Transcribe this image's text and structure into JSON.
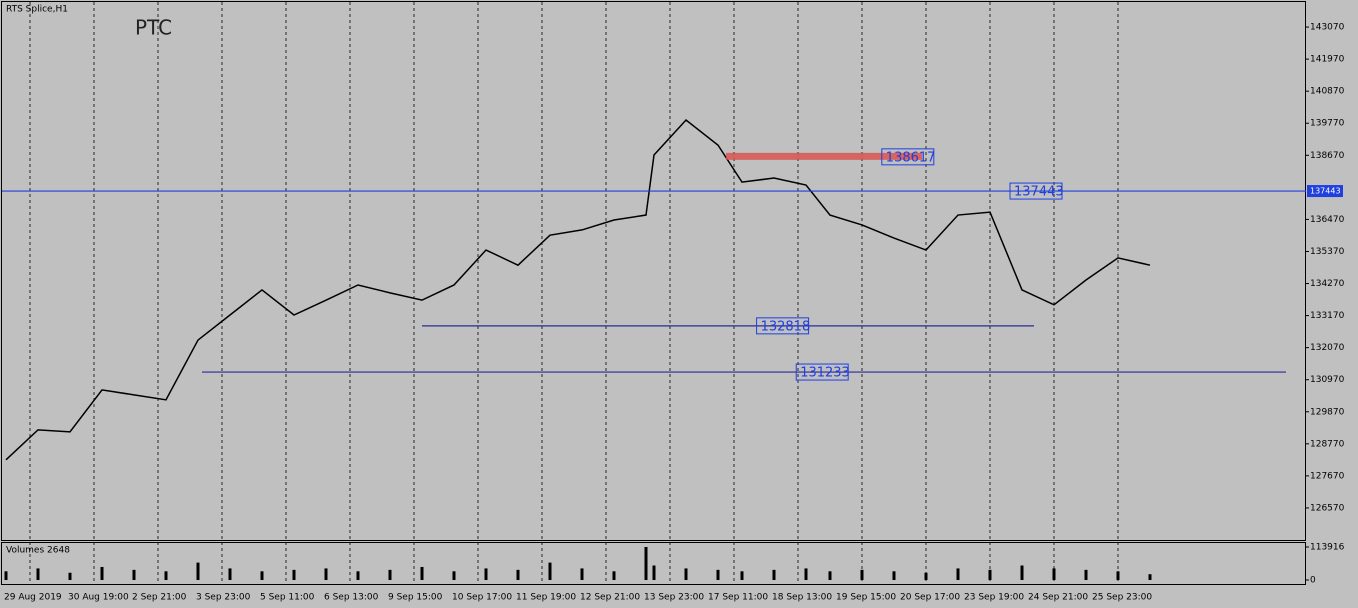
{
  "window_title": "RTS Splice,H1",
  "watermark": "PTC",
  "chart_data": [
    {
      "type": "line",
      "color": "#000000",
      "x": [
        1,
        9,
        17,
        25,
        33,
        41,
        49,
        57,
        65,
        73,
        81,
        89,
        97,
        105,
        113,
        121,
        129,
        137,
        145,
        153,
        161,
        163,
        171,
        179,
        185,
        193,
        201,
        207,
        215,
        223,
        231,
        239,
        247,
        255,
        263,
        271,
        279,
        287
      ],
      "values": [
        128220,
        129250,
        129180,
        130620,
        130450,
        130280,
        132330,
        133190,
        134050,
        133190,
        133700,
        134220,
        133950,
        133700,
        134220,
        135420,
        134900,
        135930,
        136110,
        136450,
        136620,
        138680,
        139880,
        139020,
        137750,
        137890,
        137650,
        136620,
        136280,
        135830,
        135420,
        136620,
        136720,
        134050,
        133540,
        134390,
        135150,
        134900
      ],
      "xlim": [
        0,
        326
      ],
      "xticks": [
        {
          "value": 0,
          "label": "29 Aug 2019"
        },
        {
          "value": 16,
          "label": "30 Aug 19:00"
        },
        {
          "value": 32,
          "label": "2 Sep 21:00"
        },
        {
          "value": 48,
          "label": "3 Sep 23:00"
        },
        {
          "value": 64,
          "label": "5 Sep 11:00"
        },
        {
          "value": 80,
          "label": "6 Sep 13:00"
        },
        {
          "value": 96,
          "label": "9 Sep 15:00"
        },
        {
          "value": 112,
          "label": "10 Sep 17:00"
        },
        {
          "value": 128,
          "label": "11 Sep 19:00"
        },
        {
          "value": 144,
          "label": "12 Sep 21:00"
        },
        {
          "value": 160,
          "label": "13 Sep 23:00"
        },
        {
          "value": 176,
          "label": "17 Sep 11:00"
        },
        {
          "value": 192,
          "label": "18 Sep 13:00"
        },
        {
          "value": 208,
          "label": "19 Sep 15:00"
        },
        {
          "value": 224,
          "label": "20 Sep 17:00"
        },
        {
          "value": 240,
          "label": "23 Sep 19:00"
        },
        {
          "value": 256,
          "label": "24 Sep 21:00"
        },
        {
          "value": 272,
          "label": "25 Sep 23:00"
        }
      ],
      "ylim": [
        125470,
        143930
      ],
      "yticks": [
        143070,
        141970,
        140870,
        139770,
        138670,
        136470,
        135370,
        134270,
        133170,
        132070,
        130970,
        129870,
        128770,
        127670,
        126570
      ],
      "levels": [
        {
          "value": 138617,
          "from": 181,
          "to": 230,
          "color": "#d9534f"
        },
        {
          "value": 137443,
          "from": 0,
          "to": 326,
          "color": "#1f3fdf"
        },
        {
          "value": 132818,
          "from": 105,
          "to": 258,
          "color": "#2a2a9a"
        },
        {
          "value": 131233,
          "from": 50,
          "to": 321,
          "color": "#2a2a9a"
        }
      ]
    },
    {
      "type": "bar",
      "title": "Volumes 2648",
      "color": "#000000",
      "x": [
        1,
        9,
        17,
        25,
        33,
        41,
        49,
        57,
        65,
        73,
        81,
        89,
        97,
        105,
        113,
        121,
        129,
        137,
        145,
        153,
        161,
        163,
        171,
        179,
        185,
        193,
        201,
        207,
        215,
        223,
        231,
        239,
        247,
        255,
        263,
        271,
        279,
        287
      ],
      "values": [
        30000,
        40000,
        25000,
        45000,
        35000,
        30000,
        60000,
        40000,
        30000,
        35000,
        40000,
        30000,
        35000,
        45000,
        30000,
        40000,
        35000,
        60000,
        40000,
        30000,
        113916,
        50000,
        40000,
        35000,
        30000,
        35000,
        40000,
        30000,
        35000,
        30000,
        25000,
        40000,
        35000,
        50000,
        40000,
        35000,
        30000,
        20000
      ],
      "xlim": [
        0,
        326
      ],
      "ylim": [
        0,
        113916
      ],
      "yticks": [
        113916,
        0
      ]
    }
  ]
}
